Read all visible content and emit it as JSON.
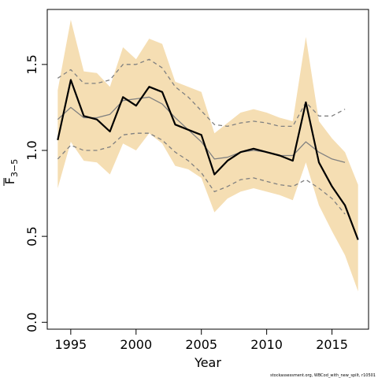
{
  "chart_data": {
    "type": "line",
    "xlabel": "Year",
    "ylabel": "F",
    "ylabel_sub": "3−5",
    "credit": "stockassessment.org, WBCod_with_new_spilt, r10501",
    "xlim": [
      1993.2,
      2017.8
    ],
    "ylim": [
      -0.04,
      1.82
    ],
    "x_ticks": [
      1995,
      2000,
      2005,
      2010,
      2015
    ],
    "y_ticks": [
      0.0,
      0.5,
      1.0,
      1.5
    ],
    "y_tick_labels": [
      "0.0",
      "0.5",
      "1.0",
      "1.5"
    ],
    "colors": {
      "band": "#f5deb3",
      "estimate": "#000000",
      "retro": "#808080",
      "axis": "#000000"
    },
    "band": {
      "x": [
        1994,
        1995,
        1996,
        1997,
        1998,
        1999,
        2000,
        2001,
        2002,
        2003,
        2004,
        2005,
        2006,
        2007,
        2008,
        2009,
        2010,
        2011,
        2012,
        2013,
        2014,
        2015,
        2016,
        2017
      ],
      "lower": [
        0.78,
        1.05,
        0.94,
        0.93,
        0.86,
        1.04,
        1.0,
        1.1,
        1.04,
        0.91,
        0.89,
        0.84,
        0.64,
        0.72,
        0.76,
        0.78,
        0.76,
        0.74,
        0.71,
        0.93,
        0.68,
        0.53,
        0.39,
        0.18
      ],
      "upper": [
        1.35,
        1.76,
        1.46,
        1.45,
        1.37,
        1.6,
        1.53,
        1.65,
        1.62,
        1.4,
        1.37,
        1.34,
        1.1,
        1.16,
        1.22,
        1.24,
        1.22,
        1.19,
        1.17,
        1.66,
        1.17,
        1.07,
        0.99,
        0.8
      ]
    },
    "series": [
      {
        "role": "estimate",
        "x": [
          1994,
          1995,
          1996,
          1997,
          1998,
          1999,
          2000,
          2001,
          2002,
          2003,
          2004,
          2005,
          2006,
          2007,
          2008,
          2009,
          2010,
          2011,
          2012,
          2013,
          2014,
          2015,
          2016,
          2017
        ],
        "values": [
          1.06,
          1.41,
          1.2,
          1.18,
          1.11,
          1.31,
          1.26,
          1.37,
          1.34,
          1.15,
          1.12,
          1.09,
          0.86,
          0.94,
          0.99,
          1.01,
          0.99,
          0.97,
          0.94,
          1.28,
          0.93,
          0.79,
          0.68,
          0.48
        ]
      },
      {
        "role": "retro-mean",
        "x": [
          1994,
          1995,
          1996,
          1997,
          1998,
          1999,
          2000,
          2001,
          2002,
          2003,
          2004,
          2005,
          2006,
          2007,
          2008,
          2009,
          2010,
          2011,
          2012,
          2013,
          2014,
          2015,
          2016
        ],
        "values": [
          1.18,
          1.25,
          1.19,
          1.19,
          1.21,
          1.29,
          1.3,
          1.31,
          1.27,
          1.19,
          1.12,
          1.05,
          0.95,
          0.96,
          0.99,
          1.0,
          0.99,
          0.97,
          0.97,
          1.05,
          0.99,
          0.95,
          0.93
        ]
      },
      {
        "role": "retro-upper",
        "x": [
          1994,
          1995,
          1996,
          1997,
          1998,
          1999,
          2000,
          2001,
          2002,
          2003,
          2004,
          2005,
          2006,
          2007,
          2008,
          2009,
          2010,
          2011,
          2012,
          2013,
          2014,
          2015,
          2016
        ],
        "values": [
          1.42,
          1.47,
          1.39,
          1.39,
          1.41,
          1.5,
          1.5,
          1.53,
          1.48,
          1.37,
          1.31,
          1.23,
          1.15,
          1.14,
          1.16,
          1.17,
          1.16,
          1.14,
          1.14,
          1.28,
          1.2,
          1.2,
          1.24
        ]
      },
      {
        "role": "retro-lower",
        "x": [
          1994,
          1995,
          1996,
          1997,
          1998,
          1999,
          2000,
          2001,
          2002,
          2003,
          2004,
          2005,
          2006,
          2007,
          2008,
          2009,
          2010,
          2011,
          2012,
          2013,
          2014,
          2015,
          2016
        ],
        "values": [
          0.95,
          1.03,
          1.0,
          1.0,
          1.02,
          1.09,
          1.1,
          1.1,
          1.06,
          0.99,
          0.94,
          0.87,
          0.76,
          0.79,
          0.83,
          0.84,
          0.82,
          0.8,
          0.79,
          0.83,
          0.78,
          0.72,
          0.63
        ]
      }
    ]
  }
}
